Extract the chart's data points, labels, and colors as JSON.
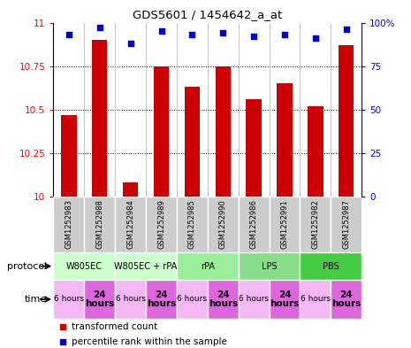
{
  "title": "GDS5601 / 1454642_a_at",
  "samples": [
    "GSM1252983",
    "GSM1252988",
    "GSM1252984",
    "GSM1252989",
    "GSM1252985",
    "GSM1252990",
    "GSM1252986",
    "GSM1252991",
    "GSM1252982",
    "GSM1252987"
  ],
  "bar_values": [
    10.47,
    10.9,
    10.08,
    10.75,
    10.63,
    10.75,
    10.56,
    10.65,
    10.52,
    10.87
  ],
  "dot_values": [
    93,
    97,
    88,
    95,
    93,
    94,
    92,
    93,
    91,
    96
  ],
  "ylim": [
    10,
    11
  ],
  "y2lim": [
    0,
    100
  ],
  "yticks": [
    10,
    10.25,
    10.5,
    10.75,
    11
  ],
  "y2ticks": [
    0,
    25,
    50,
    75,
    100
  ],
  "bar_color": "#cc0000",
  "dot_color": "#0000cc",
  "protocol_groups": [
    {
      "label": "W805EC",
      "start": 0,
      "end": 2,
      "color": "#ccffcc"
    },
    {
      "label": "W805EC + rPA",
      "start": 2,
      "end": 4,
      "color": "#ccffcc"
    },
    {
      "label": "rPA",
      "start": 4,
      "end": 6,
      "color": "#99ee99"
    },
    {
      "label": "LPS",
      "start": 6,
      "end": 8,
      "color": "#88dd88"
    },
    {
      "label": "PBS",
      "start": 8,
      "end": 10,
      "color": "#44cc44"
    }
  ],
  "time_labels": [
    "6 hours",
    "24\nhours",
    "6 hours",
    "24\nhours",
    "6 hours",
    "24\nhours",
    "6 hours",
    "24\nhours",
    "6 hours",
    "24\nhours"
  ],
  "time_colors": [
    "#f4b8f4",
    "#dd66dd",
    "#f4b8f4",
    "#dd66dd",
    "#f4b8f4",
    "#dd66dd",
    "#f4b8f4",
    "#dd66dd",
    "#f4b8f4",
    "#dd66dd"
  ],
  "legend_transformed": "transformed count",
  "legend_percentile": "percentile rank within the sample",
  "sample_bg_color": "#cccccc"
}
